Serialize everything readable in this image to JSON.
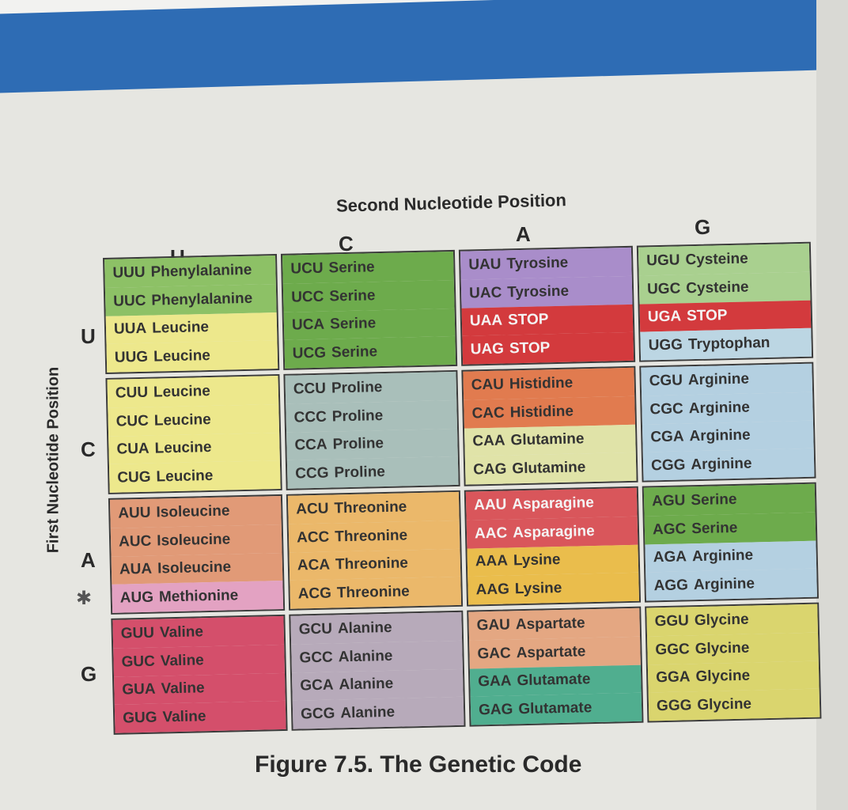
{
  "title": "Second Nucleotide Position",
  "side_label": "First Nucleotide Position",
  "caption": "Figure 7.5.  The Genetic Code",
  "columns": [
    "U",
    "C",
    "A",
    "G"
  ],
  "rows": [
    {
      "first": "U",
      "blocks": [
        [
          {
            "codon": "UUU",
            "aa": "Phenylalanine",
            "color": "#8dc166"
          },
          {
            "codon": "UUC",
            "aa": "Phenylalanine",
            "color": "#8dc166"
          },
          {
            "codon": "UUA",
            "aa": "Leucine",
            "color": "#ede88c"
          },
          {
            "codon": "UUG",
            "aa": "Leucine",
            "color": "#ede88c"
          }
        ],
        [
          {
            "codon": "UCU",
            "aa": "Serine",
            "color": "#6dab4c"
          },
          {
            "codon": "UCC",
            "aa": "Serine",
            "color": "#6dab4c"
          },
          {
            "codon": "UCA",
            "aa": "Serine",
            "color": "#6dab4c"
          },
          {
            "codon": "UCG",
            "aa": "Serine",
            "color": "#6dab4c"
          }
        ],
        [
          {
            "codon": "UAU",
            "aa": "Tyrosine",
            "color": "#a98dca"
          },
          {
            "codon": "UAC",
            "aa": "Tyrosine",
            "color": "#a98dca"
          },
          {
            "codon": "UAA",
            "aa": "STOP",
            "color": "#d33a3d",
            "light": true
          },
          {
            "codon": "UAG",
            "aa": "STOP",
            "color": "#d33a3d",
            "light": true
          }
        ],
        [
          {
            "codon": "UGU",
            "aa": "Cysteine",
            "color": "#a9d08f"
          },
          {
            "codon": "UGC",
            "aa": "Cysteine",
            "color": "#a9d08f"
          },
          {
            "codon": "UGA",
            "aa": "STOP",
            "color": "#d33a3d",
            "light": true
          },
          {
            "codon": "UGG",
            "aa": "Tryptophan",
            "color": "#bcd6e3"
          }
        ]
      ]
    },
    {
      "first": "C",
      "blocks": [
        [
          {
            "codon": "CUU",
            "aa": "Leucine",
            "color": "#ede88c"
          },
          {
            "codon": "CUC",
            "aa": "Leucine",
            "color": "#ede88c"
          },
          {
            "codon": "CUA",
            "aa": "Leucine",
            "color": "#ede88c"
          },
          {
            "codon": "CUG",
            "aa": "Leucine",
            "color": "#ede88c"
          }
        ],
        [
          {
            "codon": "CCU",
            "aa": "Proline",
            "color": "#a9bfba"
          },
          {
            "codon": "CCC",
            "aa": "Proline",
            "color": "#a9bfba"
          },
          {
            "codon": "CCA",
            "aa": "Proline",
            "color": "#a9bfba"
          },
          {
            "codon": "CCG",
            "aa": "Proline",
            "color": "#a9bfba"
          }
        ],
        [
          {
            "codon": "CAU",
            "aa": "Histidine",
            "color": "#e17b4f"
          },
          {
            "codon": "CAC",
            "aa": "Histidine",
            "color": "#e17b4f"
          },
          {
            "codon": "CAA",
            "aa": "Glutamine",
            "color": "#e0e3a8"
          },
          {
            "codon": "CAG",
            "aa": "Glutamine",
            "color": "#e0e3a8"
          }
        ],
        [
          {
            "codon": "CGU",
            "aa": "Arginine",
            "color": "#b4d0e1"
          },
          {
            "codon": "CGC",
            "aa": "Arginine",
            "color": "#b4d0e1"
          },
          {
            "codon": "CGA",
            "aa": "Arginine",
            "color": "#b4d0e1"
          },
          {
            "codon": "CGG",
            "aa": "Arginine",
            "color": "#b4d0e1"
          }
        ]
      ]
    },
    {
      "first": "A",
      "blocks": [
        [
          {
            "codon": "AUU",
            "aa": "Isoleucine",
            "color": "#e19a77"
          },
          {
            "codon": "AUC",
            "aa": "Isoleucine",
            "color": "#e19a77"
          },
          {
            "codon": "AUA",
            "aa": "Isoleucine",
            "color": "#e19a77"
          },
          {
            "codon": "AUG",
            "aa": "Methionine",
            "color": "#e3a2c2"
          }
        ],
        [
          {
            "codon": "ACU",
            "aa": "Threonine",
            "color": "#ebb86a"
          },
          {
            "codon": "ACC",
            "aa": "Threonine",
            "color": "#ebb86a"
          },
          {
            "codon": "ACA",
            "aa": "Threonine",
            "color": "#ebb86a"
          },
          {
            "codon": "ACG",
            "aa": "Threonine",
            "color": "#ebb86a"
          }
        ],
        [
          {
            "codon": "AAU",
            "aa": "Asparagine",
            "color": "#d9565b",
            "light": true
          },
          {
            "codon": "AAC",
            "aa": "Asparagine",
            "color": "#d9565b",
            "light": true
          },
          {
            "codon": "AAA",
            "aa": "Lysine",
            "color": "#eabd4c"
          },
          {
            "codon": "AAG",
            "aa": "Lysine",
            "color": "#eabd4c"
          }
        ],
        [
          {
            "codon": "AGU",
            "aa": "Serine",
            "color": "#6dab4c"
          },
          {
            "codon": "AGC",
            "aa": "Serine",
            "color": "#6dab4c"
          },
          {
            "codon": "AGA",
            "aa": "Arginine",
            "color": "#b4d0e1"
          },
          {
            "codon": "AGG",
            "aa": "Arginine",
            "color": "#b4d0e1"
          }
        ]
      ]
    },
    {
      "first": "G",
      "blocks": [
        [
          {
            "codon": "GUU",
            "aa": "Valine",
            "color": "#d44f6b"
          },
          {
            "codon": "GUC",
            "aa": "Valine",
            "color": "#d44f6b"
          },
          {
            "codon": "GUA",
            "aa": "Valine",
            "color": "#d44f6b"
          },
          {
            "codon": "GUG",
            "aa": "Valine",
            "color": "#d44f6b"
          }
        ],
        [
          {
            "codon": "GCU",
            "aa": "Alanine",
            "color": "#b7aaba"
          },
          {
            "codon": "GCC",
            "aa": "Alanine",
            "color": "#b7aaba"
          },
          {
            "codon": "GCA",
            "aa": "Alanine",
            "color": "#b7aaba"
          },
          {
            "codon": "GCG",
            "aa": "Alanine",
            "color": "#b7aaba"
          }
        ],
        [
          {
            "codon": "GAU",
            "aa": "Aspartate",
            "color": "#e4a782"
          },
          {
            "codon": "GAC",
            "aa": "Aspartate",
            "color": "#e4a782"
          },
          {
            "codon": "GAA",
            "aa": "Glutamate",
            "color": "#50ae8f"
          },
          {
            "codon": "GAG",
            "aa": "Glutamate",
            "color": "#50ae8f"
          }
        ],
        [
          {
            "codon": "GGU",
            "aa": "Glycine",
            "color": "#dad56e"
          },
          {
            "codon": "GGC",
            "aa": "Glycine",
            "color": "#dad56e"
          },
          {
            "codon": "GGA",
            "aa": "Glycine",
            "color": "#dad56e"
          },
          {
            "codon": "GGG",
            "aa": "Glycine",
            "color": "#dad56e"
          }
        ]
      ]
    }
  ]
}
